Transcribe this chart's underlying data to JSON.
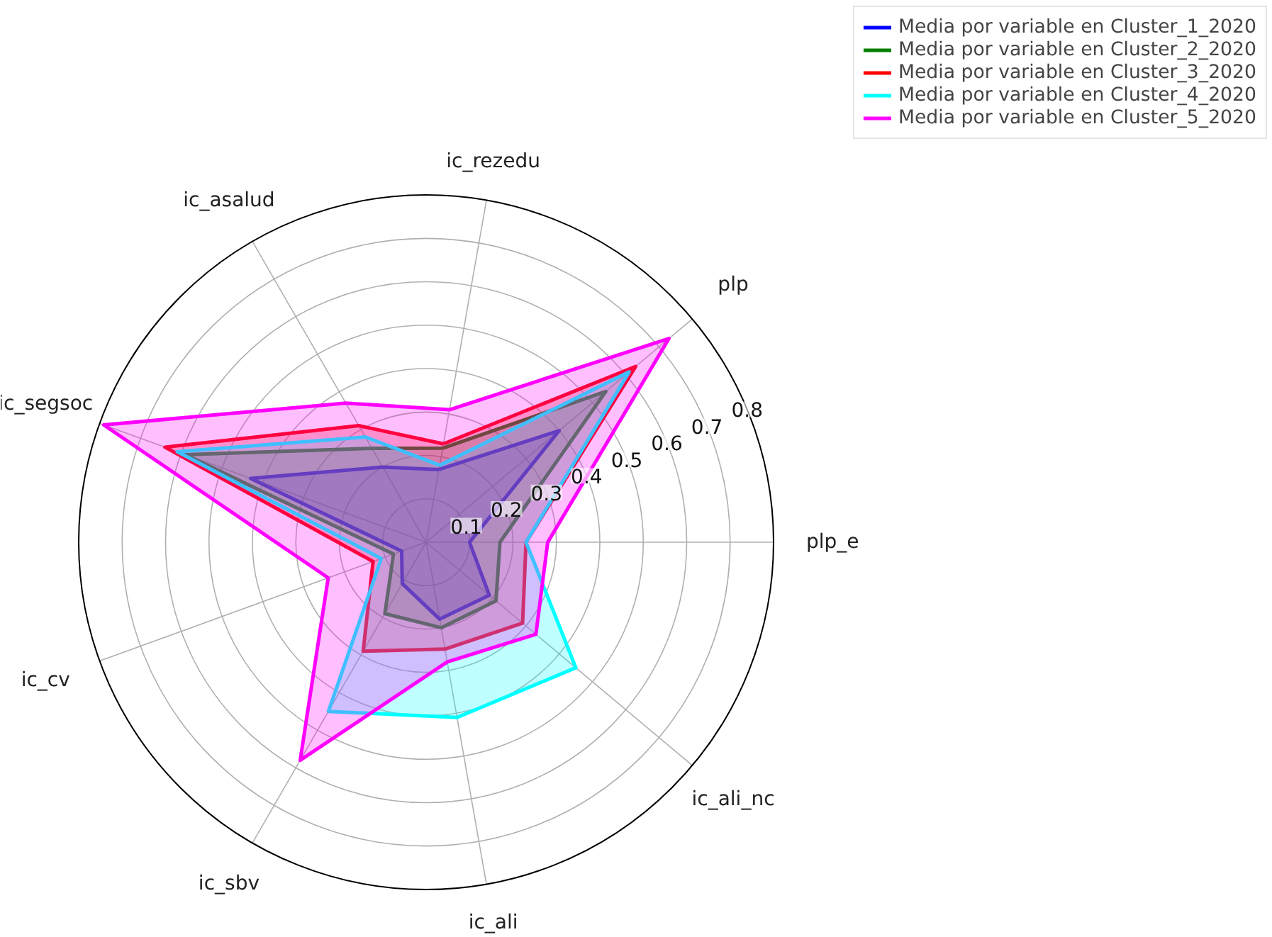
{
  "chart_data": {
    "type": "radar",
    "categories": [
      "ic_rezedu",
      "plp",
      "plp_e",
      "ic_ali_nc",
      "ic_ali",
      "ic_sbv",
      "ic_cv",
      "ic_segsoc",
      "ic_asalud"
    ],
    "ylim": [
      0,
      0.8
    ],
    "yticks": [
      0.1,
      0.2,
      0.3,
      0.4,
      0.5,
      0.6,
      0.7,
      0.8
    ],
    "grid": true,
    "legend": "top right",
    "series": [
      {
        "name": "Media por variable en Cluster_1_2020",
        "color": "#0000ff",
        "values": [
          0.17,
          0.4,
          0.1,
          0.19,
          0.18,
          0.11,
          0.06,
          0.43,
          0.2
        ]
      },
      {
        "name": "Media por variable en Cluster_2_2020",
        "color": "#008000",
        "values": [
          0.22,
          0.54,
          0.17,
          0.21,
          0.2,
          0.19,
          0.08,
          0.59,
          0.25
        ]
      },
      {
        "name": "Media por variable en Cluster_3_2020",
        "color": "#ff0000",
        "values": [
          0.23,
          0.63,
          0.23,
          0.29,
          0.25,
          0.29,
          0.13,
          0.64,
          0.31
        ]
      },
      {
        "name": "Media por variable en Cluster_4_2020",
        "color": "#00ffff",
        "values": [
          0.18,
          0.61,
          0.23,
          0.45,
          0.41,
          0.45,
          0.11,
          0.61,
          0.28
        ]
      },
      {
        "name": "Media por variable en Cluster_5_2020",
        "color": "#ff00ff",
        "values": [
          0.31,
          0.73,
          0.28,
          0.33,
          0.28,
          0.58,
          0.24,
          0.79,
          0.37
        ]
      }
    ]
  }
}
